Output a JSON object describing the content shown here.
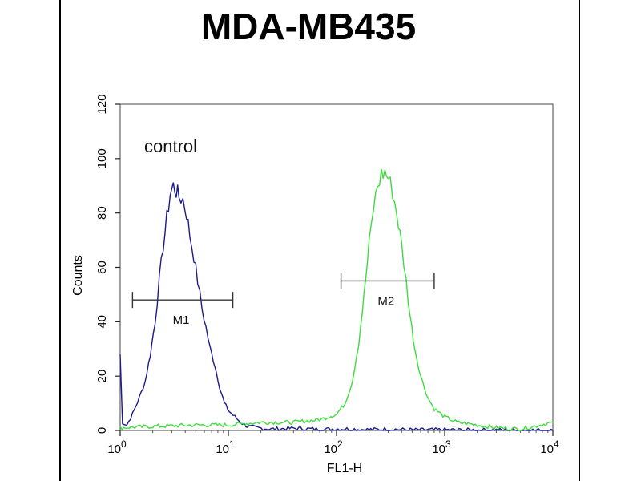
{
  "chart_data": {
    "type": "line",
    "title": "MDA-MB435",
    "xlabel": "FL1-H",
    "ylabel": "Counts",
    "x_scale": "log",
    "xlim": [
      1,
      10000
    ],
    "ylim": [
      0,
      120
    ],
    "x_ticks": [
      {
        "value": 1,
        "base": "10",
        "exp": "0"
      },
      {
        "value": 10,
        "base": "10",
        "exp": "1"
      },
      {
        "value": 100,
        "base": "10",
        "exp": "2"
      },
      {
        "value": 1000,
        "base": "10",
        "exp": "3"
      },
      {
        "value": 10000,
        "base": "10",
        "exp": "4"
      }
    ],
    "y_ticks": [
      0,
      20,
      40,
      60,
      80,
      100,
      120
    ],
    "annotation": "control",
    "markers": [
      {
        "label": "M1",
        "x_start": 1.3,
        "x_end": 11,
        "y": 48
      },
      {
        "label": "M2",
        "x_start": 110,
        "x_end": 800,
        "y": 55
      }
    ],
    "series": [
      {
        "color": "#1a1a8c",
        "x": [
          1.0,
          1.05,
          1.15,
          1.3,
          1.5,
          1.7,
          1.9,
          2.1,
          2.3,
          2.5,
          2.7,
          2.9,
          3.1,
          3.3,
          3.5,
          3.8,
          4.1,
          4.4,
          4.8,
          5.2,
          5.7,
          6.2,
          6.8,
          7.5,
          8.3,
          9.2,
          10.2,
          11.5,
          13,
          15,
          18,
          25,
          40,
          70,
          120,
          200,
          300,
          500,
          1000,
          3000,
          10000
        ],
        "y": [
          28,
          3,
          2,
          6,
          12,
          18,
          28,
          40,
          55,
          68,
          78,
          87,
          90,
          88,
          86,
          85,
          80,
          72,
          64,
          55,
          45,
          38,
          30,
          24,
          16,
          10,
          7,
          5,
          3,
          1.5,
          1,
          0.5,
          0.8,
          0.4,
          0.6,
          0.3,
          0.5,
          0.2,
          0.2,
          0.1,
          0.1
        ]
      },
      {
        "color": "#3ddc3d",
        "x": [
          1.0,
          2,
          5,
          10,
          20,
          40,
          70,
          100,
          120,
          140,
          160,
          180,
          200,
          220,
          240,
          260,
          280,
          300,
          330,
          360,
          400,
          440,
          480,
          530,
          600,
          700,
          800,
          1000,
          1300,
          2000,
          3000,
          5000,
          10000
        ],
        "y": [
          1,
          1.5,
          2,
          2,
          3,
          3,
          4,
          6,
          10,
          18,
          32,
          50,
          68,
          82,
          90,
          94,
          95,
          93,
          88,
          80,
          68,
          55,
          42,
          30,
          20,
          12,
          8,
          5,
          3,
          2,
          1,
          0.5,
          3
        ]
      }
    ]
  }
}
